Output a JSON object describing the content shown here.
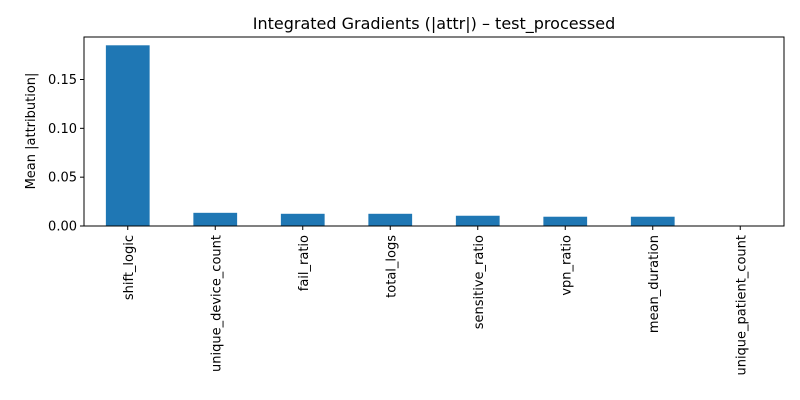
{
  "chart_data": {
    "type": "bar",
    "title": "Integrated Gradients (|attr|) – test_processed",
    "xlabel": "",
    "ylabel": "Mean |attribution|",
    "categories": [
      "shift_logic",
      "unique_device_count",
      "fail_ratio",
      "total_logs",
      "sensitive_ratio",
      "vpn_ratio",
      "mean_duration",
      "unique_patient_count"
    ],
    "values": [
      0.185,
      0.0135,
      0.0125,
      0.0125,
      0.0105,
      0.0095,
      0.0095,
      0.0003
    ],
    "ylim": [
      0,
      0.1935
    ],
    "yticks": [
      0.0,
      0.05,
      0.1,
      0.15
    ],
    "ytick_labels": [
      "0.00",
      "0.05",
      "0.10",
      "0.15"
    ],
    "bar_color": "#1f77b4",
    "grid": false
  }
}
